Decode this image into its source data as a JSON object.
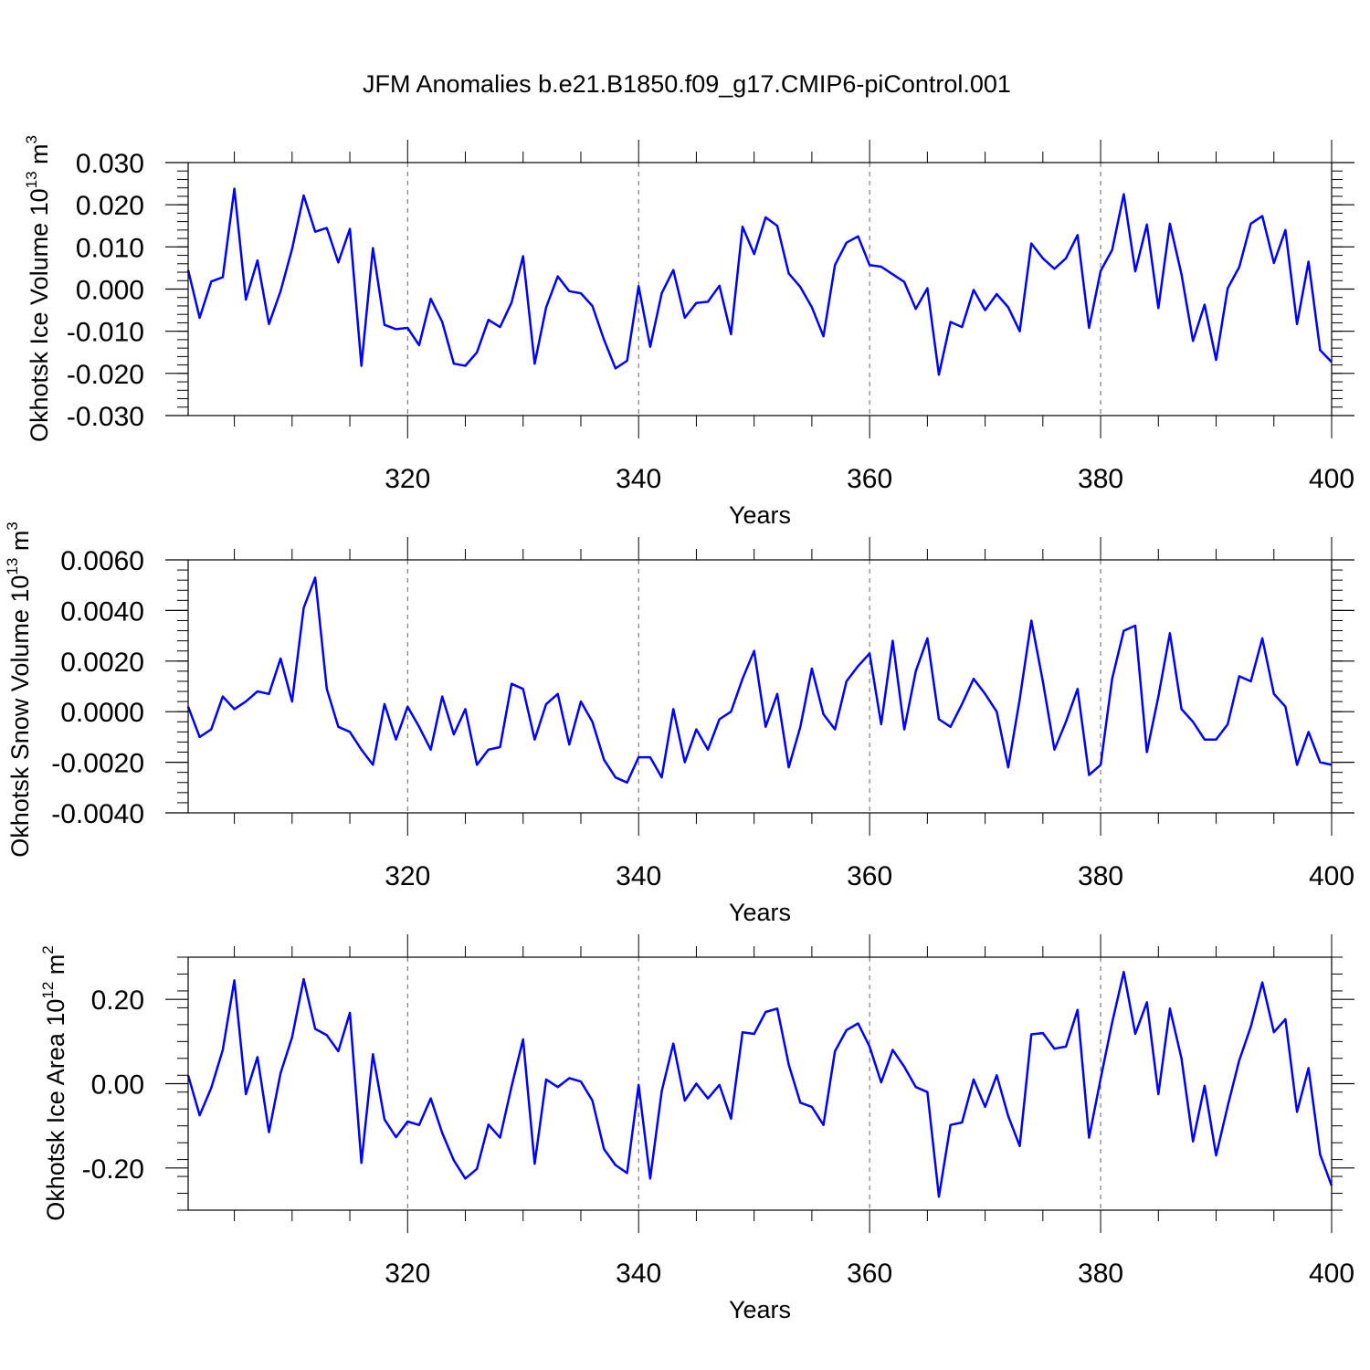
{
  "title": "JFM Anomalies b.e21.B1850.f09_g17.CMIP6-piControl.001",
  "chart_data": [
    {
      "type": "line",
      "ylabel": "Okhotsk Ice Volume 10",
      "ylabel_exp": "13",
      "ylabel_unit": " m",
      "ylabel_unit_exp": "3",
      "xlabel": "Years",
      "xlim": [
        301,
        400
      ],
      "ylim": [
        -0.03,
        0.03
      ],
      "yticks": [
        -0.03,
        -0.02,
        -0.01,
        0.0,
        0.01,
        0.02,
        0.03
      ],
      "ytick_labels": [
        "-0.030",
        "-0.020",
        "-0.010",
        "0.000",
        "0.010",
        "0.020",
        "0.030"
      ],
      "yminor_step": 0.002,
      "xticks": [
        320,
        340,
        360,
        380,
        400
      ],
      "xtick_labels": [
        "320",
        "340",
        "360",
        "380",
        "400"
      ],
      "xminor_step": 5,
      "grid_x": [
        320,
        340,
        360,
        380
      ],
      "series": [
        {
          "name": "Okhotsk Ice Volume",
          "color": "#0000ff",
          "x_start": 301,
          "values": [
            0.0045,
            -0.0068,
            0.0018,
            0.0028,
            0.0238,
            -0.0025,
            0.0068,
            -0.0083,
            -0.0005,
            0.0095,
            0.0222,
            0.0136,
            0.0145,
            0.0063,
            0.0143,
            -0.0182,
            0.0097,
            -0.0085,
            -0.0095,
            -0.0092,
            -0.0133,
            -0.0023,
            -0.0078,
            -0.0177,
            -0.0182,
            -0.015,
            -0.0073,
            -0.009,
            -0.0032,
            0.0078,
            -0.0177,
            -0.0043,
            0.003,
            -0.0005,
            -0.001,
            -0.004,
            -0.012,
            -0.0188,
            -0.017,
            0.0007,
            -0.0137,
            -0.001,
            0.0045,
            -0.0068,
            -0.0033,
            -0.003,
            0.0008,
            -0.0107,
            0.0148,
            0.0083,
            0.017,
            0.015,
            0.0037,
            0.0005,
            -0.0043,
            -0.0112,
            0.0057,
            0.011,
            0.0125,
            0.0057,
            0.0053,
            0.0035,
            0.0017,
            -0.0047,
            0.0002,
            -0.0203,
            -0.0078,
            -0.009,
            -0.0002,
            -0.005,
            -0.0012,
            -0.0043,
            -0.01,
            0.0108,
            0.0073,
            0.0048,
            0.0073,
            0.0128,
            -0.0092,
            0.0043,
            0.0093,
            0.0225,
            0.0042,
            0.0153,
            -0.0045,
            0.0155,
            0.0035,
            -0.0123,
            -0.0037,
            -0.0168,
            0.0002,
            0.0052,
            0.0155,
            0.0173,
            0.0062,
            0.014,
            -0.0083,
            0.0065,
            -0.0145,
            -0.0173
          ]
        }
      ]
    },
    {
      "type": "line",
      "ylabel": "Okhotsk Snow Volume 10",
      "ylabel_exp": "13",
      "ylabel_unit": " m",
      "ylabel_unit_exp": "3",
      "xlabel": "Years",
      "xlim": [
        301,
        400
      ],
      "ylim": [
        -0.004,
        0.006
      ],
      "yticks": [
        -0.004,
        -0.002,
        0.0,
        0.002,
        0.004,
        0.006
      ],
      "ytick_labels": [
        "-0.0040",
        "-0.0020",
        "0.0000",
        "0.0020",
        "0.0040",
        "0.0060"
      ],
      "yminor_step": 0.0004,
      "xticks": [
        320,
        340,
        360,
        380,
        400
      ],
      "xtick_labels": [
        "320",
        "340",
        "360",
        "380",
        "400"
      ],
      "xminor_step": 5,
      "grid_x": [
        320,
        340,
        360,
        380
      ],
      "series": [
        {
          "name": "Okhotsk Snow Volume",
          "color": "#0000ff",
          "x_start": 301,
          "values": [
            0.0002,
            -0.001,
            -0.0007,
            0.0006,
            0.0001,
            0.0004,
            0.0008,
            0.0007,
            0.0021,
            0.0004,
            0.0041,
            0.0053,
            0.0009,
            -0.0006,
            -0.0008,
            -0.0015,
            -0.0021,
            0.0003,
            -0.0011,
            0.0002,
            -0.0006,
            -0.0015,
            0.0006,
            -0.0009,
            0.0001,
            -0.0021,
            -0.0015,
            -0.0014,
            0.0011,
            0.0009,
            -0.0011,
            0.0003,
            0.0007,
            -0.0013,
            0.0004,
            -0.0004,
            -0.0019,
            -0.0026,
            -0.0028,
            -0.0018,
            -0.0018,
            -0.0026,
            0.0001,
            -0.002,
            -0.0007,
            -0.0015,
            -0.0003,
            0.0,
            0.0013,
            0.0024,
            -0.0006,
            0.0007,
            -0.0022,
            -0.0006,
            0.0017,
            -0.0001,
            -0.0007,
            0.0012,
            0.0018,
            0.0023,
            -0.0005,
            0.0028,
            -0.0007,
            0.0016,
            0.0029,
            -0.0003,
            -0.0006,
            0.0003,
            0.0013,
            0.0007,
            0.0,
            -0.0022,
            0.0005,
            0.0036,
            0.0012,
            -0.0015,
            -0.0004,
            0.0009,
            -0.0025,
            -0.0021,
            0.0013,
            0.0032,
            0.0034,
            -0.0016,
            0.0006,
            0.0031,
            0.0001,
            -0.0004,
            -0.0011,
            -0.0011,
            -0.0005,
            0.0014,
            0.0012,
            0.0029,
            0.0007,
            0.0002,
            -0.0021,
            -0.0008,
            -0.002,
            -0.0021
          ]
        }
      ]
    },
    {
      "type": "line",
      "ylabel": "Okhotsk Ice Area 10",
      "ylabel_exp": "12",
      "ylabel_unit": " m",
      "ylabel_unit_exp": "2",
      "xlabel": "Years",
      "xlim": [
        301,
        400
      ],
      "ylim": [
        -0.3,
        0.3
      ],
      "yticks": [
        -0.2,
        0.0,
        0.2
      ],
      "ytick_labels": [
        "-0.20",
        "0.00",
        "0.20"
      ],
      "yminor_step": 0.04,
      "xticks": [
        320,
        340,
        360,
        380,
        400
      ],
      "xtick_labels": [
        "320",
        "340",
        "360",
        "380",
        "400"
      ],
      "xminor_step": 5,
      "grid_x": [
        320,
        340,
        360,
        380
      ],
      "series": [
        {
          "name": "Okhotsk Ice Area",
          "color": "#0000ff",
          "x_start": 301,
          "values": [
            0.02,
            -0.075,
            -0.01,
            0.08,
            0.245,
            -0.025,
            0.063,
            -0.115,
            0.025,
            0.11,
            0.248,
            0.13,
            0.115,
            0.077,
            0.168,
            -0.188,
            0.07,
            -0.085,
            -0.127,
            -0.09,
            -0.098,
            -0.035,
            -0.117,
            -0.182,
            -0.225,
            -0.202,
            -0.097,
            -0.128,
            -0.007,
            0.105,
            -0.19,
            0.01,
            -0.008,
            0.013,
            0.005,
            -0.04,
            -0.155,
            -0.193,
            -0.212,
            -0.003,
            -0.225,
            -0.018,
            0.095,
            -0.04,
            0.0,
            -0.035,
            -0.003,
            -0.083,
            0.122,
            0.118,
            0.17,
            0.178,
            0.045,
            -0.045,
            -0.055,
            -0.098,
            0.077,
            0.127,
            0.143,
            0.088,
            0.003,
            0.08,
            0.04,
            -0.008,
            -0.02,
            -0.268,
            -0.098,
            -0.092,
            0.01,
            -0.055,
            0.02,
            -0.077,
            -0.148,
            0.117,
            0.12,
            0.083,
            0.088,
            0.175,
            -0.128,
            0.012,
            0.145,
            0.265,
            0.118,
            0.193,
            -0.025,
            0.178,
            0.06,
            -0.137,
            -0.005,
            -0.17,
            -0.053,
            0.055,
            0.135,
            0.24,
            0.122,
            0.153,
            -0.067,
            0.037,
            -0.168,
            -0.242
          ]
        }
      ]
    }
  ]
}
